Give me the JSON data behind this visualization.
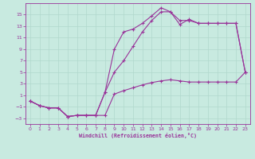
{
  "bg_color": "#c8eae0",
  "line_color": "#993399",
  "grid_color": "#b0d8cc",
  "xlabel": "Windchill (Refroidissement éolien,°C)",
  "xlim": [
    -0.5,
    23.5
  ],
  "ylim": [
    -4.0,
    17.0
  ],
  "xticks": [
    0,
    1,
    2,
    3,
    4,
    5,
    6,
    7,
    8,
    9,
    10,
    11,
    12,
    13,
    14,
    15,
    16,
    17,
    18,
    19,
    20,
    21,
    22,
    23
  ],
  "yticks": [
    -3,
    -1,
    1,
    3,
    5,
    7,
    9,
    11,
    13,
    15
  ],
  "line1_x": [
    0,
    1,
    2,
    3,
    4,
    5,
    6,
    7,
    8,
    9,
    10,
    11,
    12,
    13,
    14,
    15,
    16,
    17,
    18,
    19,
    20,
    21,
    22,
    23
  ],
  "line1_y": [
    0.0,
    -0.8,
    -1.2,
    -1.2,
    -2.7,
    -2.5,
    -2.5,
    -2.5,
    -2.5,
    1.2,
    1.8,
    2.3,
    2.8,
    3.2,
    3.5,
    3.7,
    3.5,
    3.3,
    3.3,
    3.3,
    3.3,
    3.3,
    3.3,
    5.0
  ],
  "line2_x": [
    0,
    1,
    2,
    3,
    4,
    5,
    6,
    7,
    8,
    9,
    10,
    11,
    12,
    13,
    14,
    15,
    16,
    17,
    18,
    19,
    20,
    21,
    22,
    23
  ],
  "line2_y": [
    0.0,
    -0.8,
    -1.2,
    -1.2,
    -2.7,
    -2.5,
    -2.5,
    -2.5,
    1.5,
    5.0,
    7.0,
    9.5,
    12.0,
    14.0,
    15.5,
    15.5,
    14.0,
    14.0,
    13.5,
    13.5,
    13.5,
    13.5,
    13.5,
    5.0
  ],
  "line3_x": [
    0,
    1,
    2,
    3,
    4,
    5,
    6,
    7,
    8,
    9,
    10,
    11,
    12,
    13,
    14,
    15,
    16,
    17,
    18,
    19,
    20,
    21,
    22,
    23
  ],
  "line3_y": [
    0.0,
    -0.8,
    -1.2,
    -1.2,
    -2.7,
    -2.5,
    -2.5,
    -2.5,
    1.5,
    9.0,
    12.0,
    12.5,
    13.5,
    14.8,
    16.2,
    15.5,
    13.3,
    14.2,
    13.5,
    13.5,
    13.5,
    13.5,
    13.5,
    5.0
  ]
}
